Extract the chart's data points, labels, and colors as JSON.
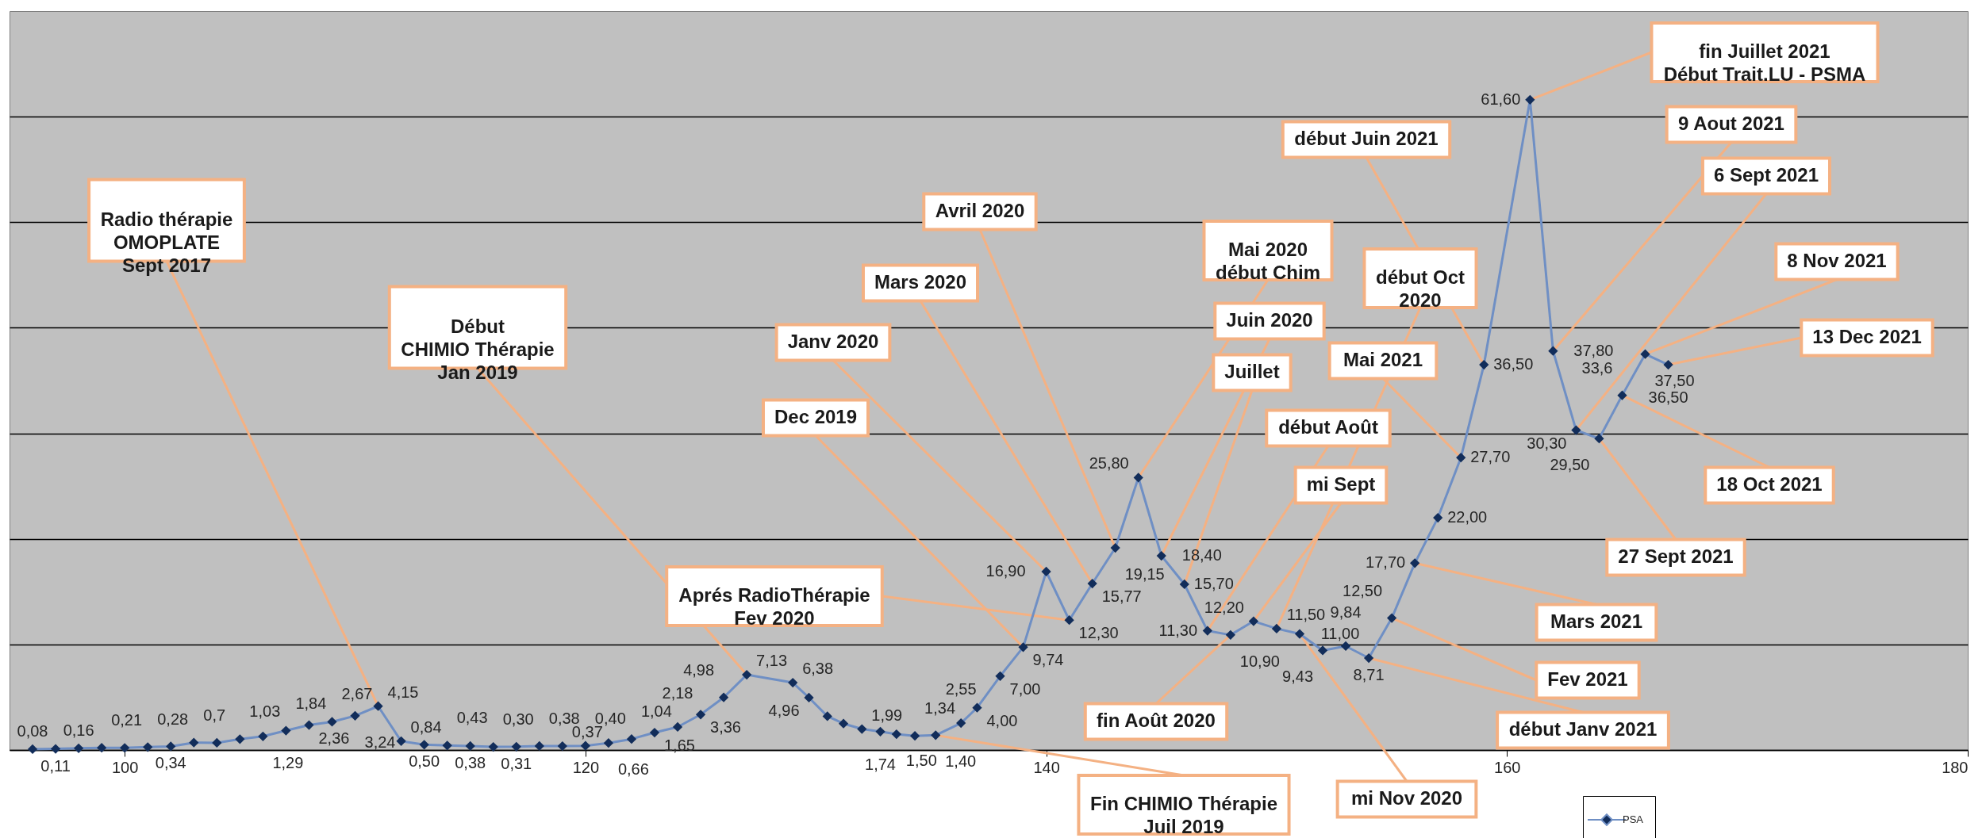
{
  "chart_data": {
    "type": "line",
    "x": [
      96,
      97,
      98,
      99,
      100,
      101,
      102,
      103,
      104,
      105,
      106,
      107,
      108,
      109,
      110,
      111,
      112,
      113,
      114,
      115,
      116,
      117,
      118,
      119,
      120,
      121,
      122,
      123,
      124,
      125,
      126,
      127,
      129,
      129.7,
      130.5,
      131.2,
      132,
      132.8,
      133.5,
      134.3,
      135.2,
      136.3,
      137,
      138,
      139,
      140,
      141,
      142,
      143,
      144,
      145,
      146,
      147,
      148,
      149,
      150,
      151,
      152,
      153,
      154,
      155,
      156,
      157,
      158,
      159,
      161,
      162,
      163,
      164,
      165,
      166,
      167
    ],
    "series": [
      {
        "name": "PSA",
        "color": "#6f8fc4",
        "values": [
          0.08,
          0.11,
          0.16,
          0.21,
          0.2,
          0.28,
          0.34,
          0.7,
          0.68,
          1.03,
          1.29,
          1.84,
          2.36,
          2.67,
          3.24,
          4.15,
          0.84,
          0.5,
          0.43,
          0.38,
          0.3,
          0.31,
          0.38,
          0.37,
          0.4,
          0.66,
          1.04,
          1.65,
          2.18,
          3.36,
          4.98,
          7.13,
          6.38,
          4.96,
          3.2,
          2.5,
          1.99,
          1.74,
          1.5,
          1.34,
          1.4,
          2.55,
          4.0,
          7.0,
          9.74,
          16.9,
          12.3,
          15.77,
          19.15,
          25.8,
          18.4,
          15.7,
          11.3,
          10.9,
          12.2,
          11.5,
          11.0,
          9.43,
          9.84,
          8.71,
          12.5,
          17.7,
          22.0,
          27.7,
          36.5,
          61.6,
          37.8,
          30.3,
          29.5,
          33.6,
          37.5,
          36.5
        ],
        "value_labels": [
          "0,08",
          "0,11",
          "0,16",
          "0,21",
          null,
          "0,28",
          "0,34",
          "0,7",
          null,
          "1,03",
          "1,29",
          "1,84",
          "2,36",
          "2,67",
          "3,24",
          "4,15",
          "0,84",
          "0,50",
          "0,43",
          "0,38",
          "0,30",
          "0,31",
          "0,38",
          "0,37",
          "0,40",
          "0,66",
          "1,04",
          "1,65",
          "2,18",
          "3,36",
          "4,98",
          "7,13",
          "6,38",
          "4,96",
          null,
          null,
          "1,99",
          "1,74",
          "1,50",
          "1,34",
          "1,40",
          "2,55",
          "4,00",
          "7,00",
          "9,74",
          "16,90",
          "12,30",
          "15,77",
          "19,15",
          "25,80",
          "18,40",
          "15,70",
          "11,30",
          "10,90",
          "12,20",
          "11,50",
          "11,00",
          "9,43",
          "9,84",
          "8,71",
          "12,50",
          "17,70",
          "22,00",
          "27,70",
          "36,50",
          "61,60",
          "37,80",
          "30,30",
          "29,50",
          "33,6",
          "37,50",
          "36,50"
        ]
      }
    ],
    "xlim": [
      95,
      180
    ],
    "xticks": [
      100,
      120,
      140,
      160,
      180
    ],
    "ylim": [
      0,
      70
    ],
    "yticks": [
      {
        "value": 0,
        "label": null
      },
      {
        "value": 10,
        "label": null
      },
      {
        "value": 20,
        "label": null
      },
      {
        "value": 30,
        "label": null
      },
      {
        "value": 40,
        "label": null
      },
      {
        "value": 50,
        "label": null
      },
      {
        "value": 60,
        "label": null
      }
    ],
    "tick_labels": "x",
    "grid": "y",
    "legend": "bottom right",
    "marker": "diamond",
    "line_style": "solid",
    "annotations": [
      {
        "text": "Radio thérapie\nOMOPLATE\nSept 2017",
        "x": 111,
        "y": 4.15
      },
      {
        "text": "Début\nCHIMIO Thérapie\nJan 2019",
        "x": 127,
        "y": 7.13
      },
      {
        "text": "Fin CHIMIO Thérapie\nJuil 2019",
        "x": 135.2,
        "y": 1.4
      },
      {
        "text": "Dec 2019",
        "x": 139,
        "y": 9.74
      },
      {
        "text": "Janv 2020",
        "x": 140,
        "y": 16.9
      },
      {
        "text": "Aprés RadioThérapie\nFev 2020",
        "x": 141,
        "y": 12.3
      },
      {
        "text": "Mars 2020",
        "x": 142,
        "y": 15.77
      },
      {
        "text": "Avril 2020",
        "x": 143,
        "y": 19.15
      },
      {
        "text": "Mai 2020\ndébut Chim",
        "x": 144,
        "y": 25.8
      },
      {
        "text": "Juin 2020",
        "x": 145,
        "y": 18.4
      },
      {
        "text": "Juillet",
        "x": 146,
        "y": 15.7
      },
      {
        "text": "début Août",
        "x": 147,
        "y": 11.3
      },
      {
        "text": "fin Août 2020",
        "x": 148,
        "y": 10.9
      },
      {
        "text": "mi Sept",
        "x": 149,
        "y": 12.2
      },
      {
        "text": "début Oct\n2020",
        "x": 150,
        "y": 11.5
      },
      {
        "text": "mi Nov  2020",
        "x": 151,
        "y": 11.0
      },
      {
        "text": "début Janv 2021",
        "x": 154,
        "y": 8.71
      },
      {
        "text": "Fev 2021",
        "x": 155,
        "y": 12.5
      },
      {
        "text": "Mars  2021",
        "x": 156,
        "y": 17.7
      },
      {
        "text": "Mai  2021",
        "x": 158,
        "y": 27.7
      },
      {
        "text": "début Juin 2021",
        "x": 159,
        "y": 36.5
      },
      {
        "text": "fin Juillet  2021\nDébut Trait.LU - PSMA",
        "x": 161,
        "y": 61.6
      },
      {
        "text": "9 Aout 2021",
        "x": 162,
        "y": 37.8
      },
      {
        "text": "6 Sept 2021",
        "x": 163,
        "y": 30.3
      },
      {
        "text": "27 Sept 2021",
        "x": 164,
        "y": 29.5
      },
      {
        "text": "18 Oct 2021",
        "x": 165,
        "y": 33.6
      },
      {
        "text": "8 Nov 2021",
        "x": 166,
        "y": 37.5
      },
      {
        "text": "13 Dec 2021",
        "x": 167,
        "y": 36.5
      }
    ]
  }
}
